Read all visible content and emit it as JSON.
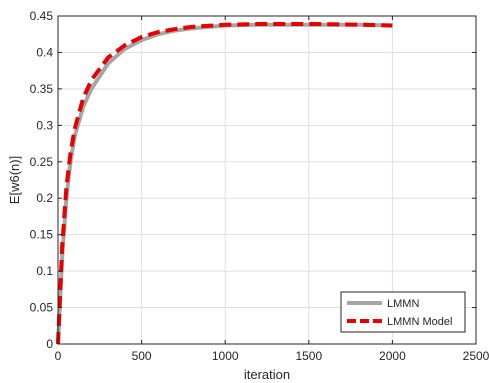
{
  "chart_data": {
    "type": "line",
    "title": "",
    "xlabel": "iteration",
    "ylabel": "E[w6(n)]",
    "xlim": [
      0,
      2500
    ],
    "ylim": [
      0,
      0.45
    ],
    "xticks": [
      0,
      500,
      1000,
      1500,
      2000,
      2500
    ],
    "yticks": [
      0,
      0.05,
      0.1,
      0.15,
      0.2,
      0.25,
      0.3,
      0.35,
      0.4,
      0.45
    ],
    "xtick_labels": [
      "0",
      "500",
      "1000",
      "1500",
      "2000",
      "2500"
    ],
    "ytick_labels": [
      "0",
      "0.05",
      "0.1",
      "0.15",
      "0.2",
      "0.25",
      "0.3",
      "0.35",
      "0.4",
      "0.45"
    ],
    "grid": true,
    "legend_position": "bottom-right",
    "series": [
      {
        "name": "LMMN",
        "color": "#a6a6a6",
        "style": "solid",
        "x": [
          0,
          25,
          50,
          75,
          100,
          150,
          200,
          300,
          400,
          500,
          600,
          700,
          800,
          1000,
          1200,
          1500,
          1800,
          2000
        ],
        "y": [
          0,
          0.12,
          0.2,
          0.25,
          0.285,
          0.325,
          0.35,
          0.385,
          0.405,
          0.417,
          0.425,
          0.43,
          0.433,
          0.437,
          0.438,
          0.438,
          0.438,
          0.437
        ]
      },
      {
        "name": "LMMN Model",
        "color": "#e60000",
        "style": "dashed",
        "x": [
          0,
          25,
          50,
          75,
          100,
          150,
          200,
          300,
          400,
          500,
          600,
          700,
          800,
          1000,
          1200,
          1500,
          1800,
          2000
        ],
        "y": [
          0,
          0.135,
          0.215,
          0.262,
          0.295,
          0.337,
          0.362,
          0.393,
          0.41,
          0.421,
          0.428,
          0.432,
          0.435,
          0.438,
          0.439,
          0.439,
          0.438,
          0.437
        ]
      }
    ]
  }
}
